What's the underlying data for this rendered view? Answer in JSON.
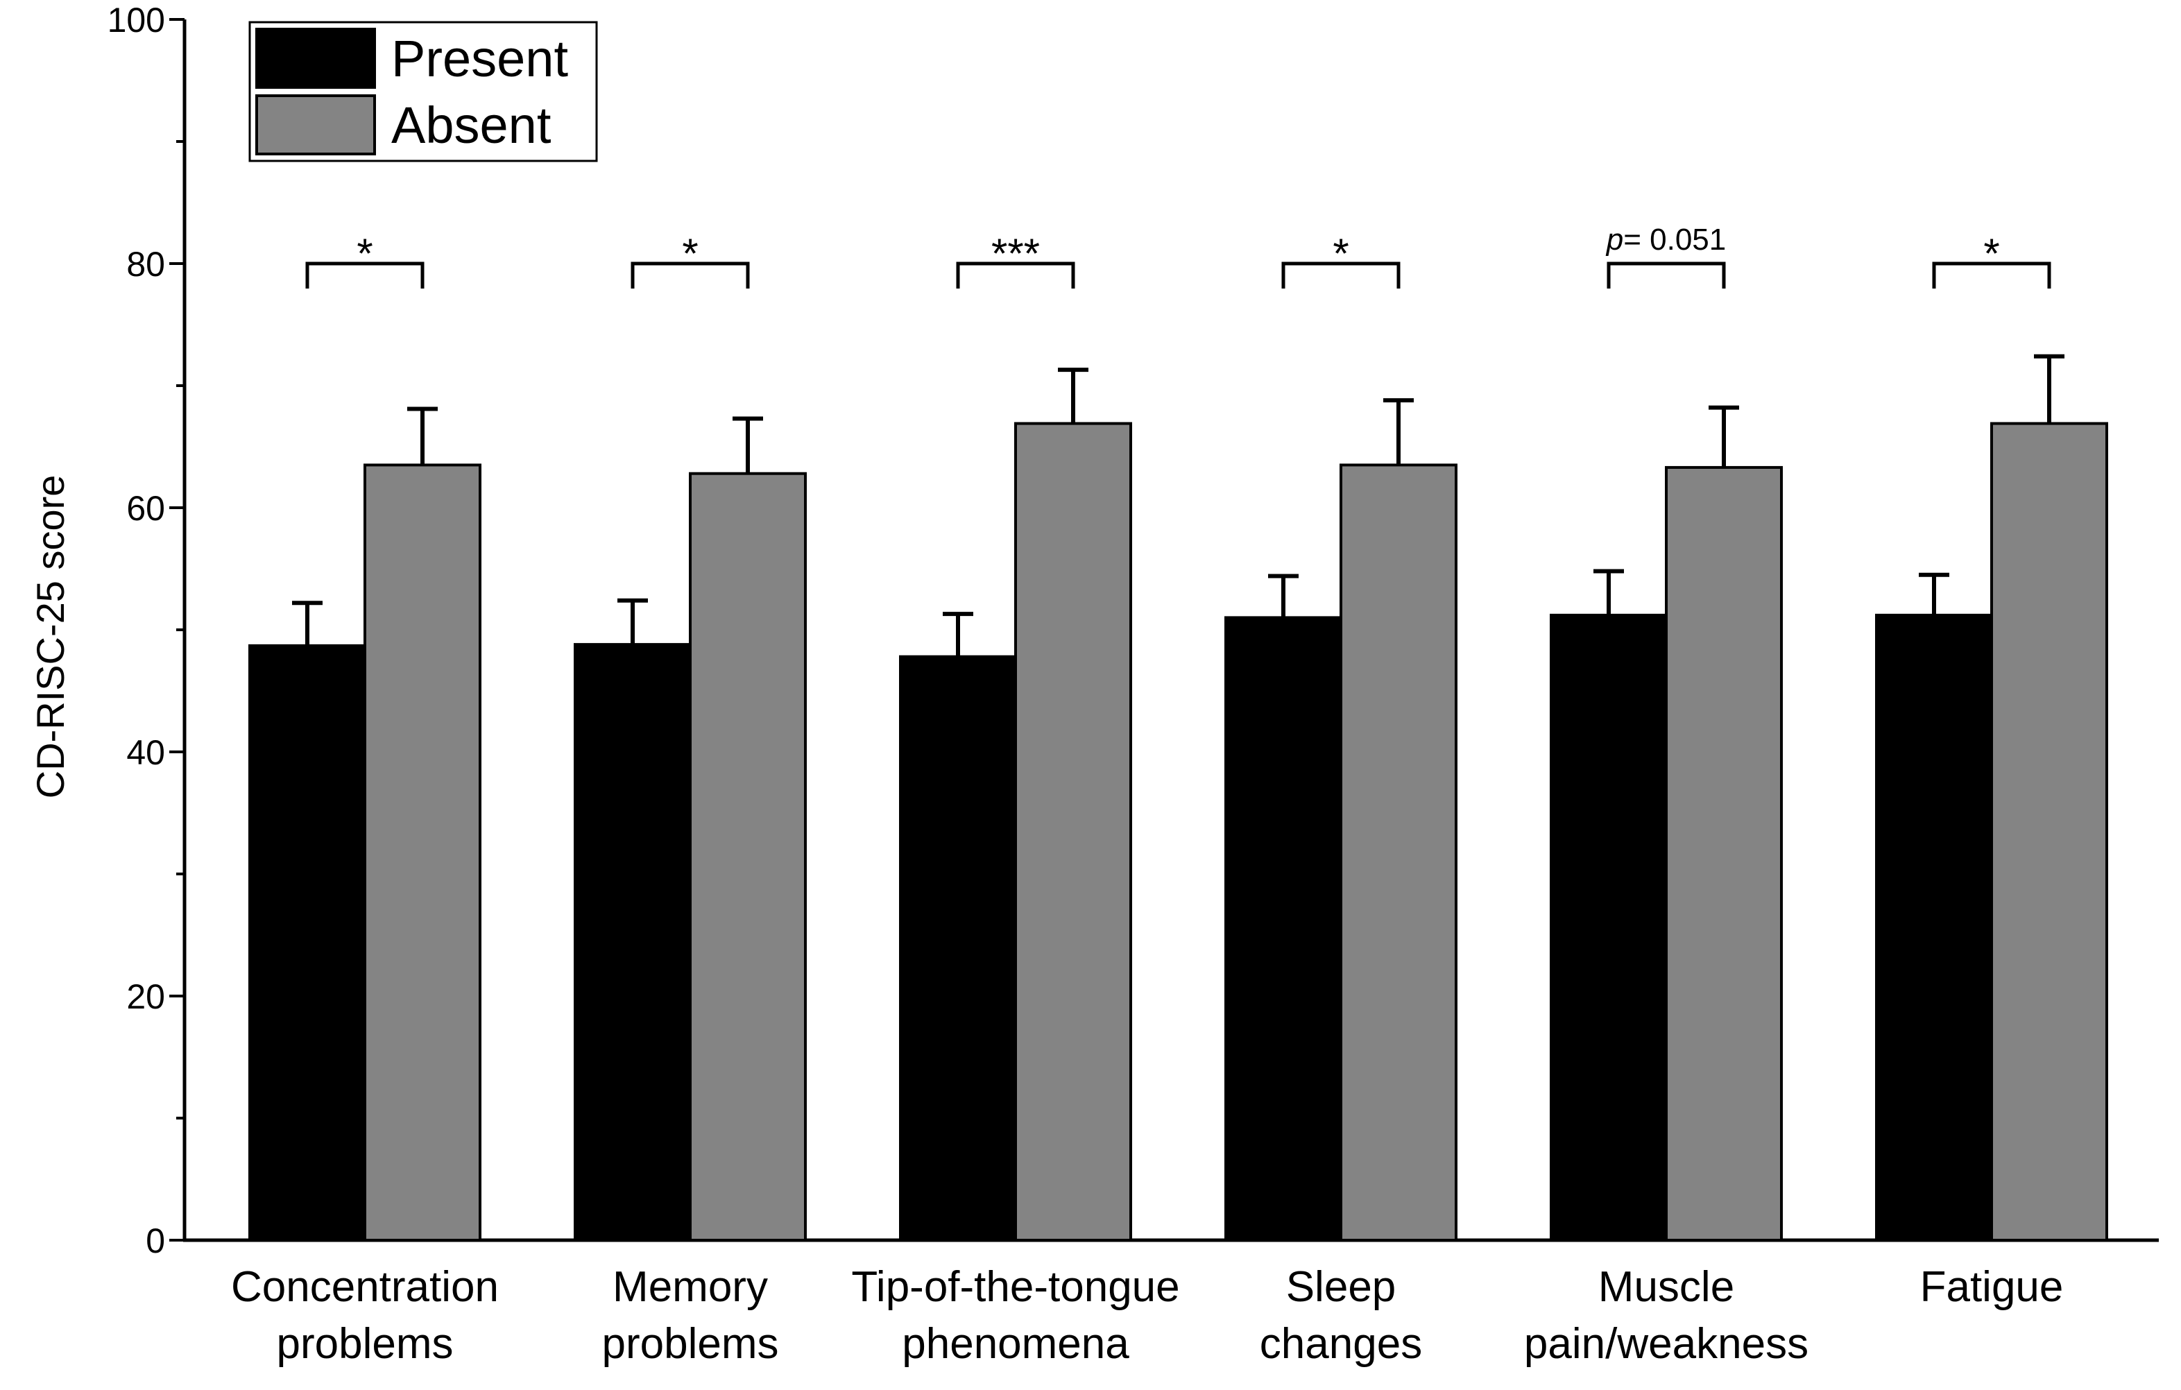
{
  "chart_data": {
    "type": "bar",
    "title": "",
    "xlabel": "",
    "ylabel": "CD-RISC-25 score",
    "ylim": [
      0,
      100
    ],
    "yticks": [
      0,
      20,
      40,
      60,
      80,
      100
    ],
    "categories": [
      [
        "Concentration",
        "problems"
      ],
      [
        "Memory",
        "problems"
      ],
      [
        "Tip-of-the-tongue",
        "phenomena"
      ],
      [
        "Sleep",
        "changes"
      ],
      [
        "Muscle",
        "pain/weakness"
      ],
      [
        "Fatigue"
      ]
    ],
    "series": [
      {
        "name": "Present",
        "color": "#000000",
        "values": [
          48.7,
          48.8,
          47.8,
          51.0,
          51.2,
          51.2
        ],
        "errors": [
          3.5,
          3.6,
          3.5,
          3.4,
          3.6,
          3.3
        ]
      },
      {
        "name": "Absent",
        "color": "#848484",
        "values": [
          63.5,
          62.8,
          66.9,
          63.5,
          63.3,
          66.9
        ],
        "errors": [
          4.6,
          4.5,
          4.4,
          5.3,
          4.9,
          5.5
        ]
      }
    ],
    "significance": [
      {
        "label": "*",
        "italic_prefix": "",
        "bracket_at": 80
      },
      {
        "label": "*",
        "italic_prefix": "",
        "bracket_at": 80
      },
      {
        "label": "***",
        "italic_prefix": "",
        "bracket_at": 80
      },
      {
        "label": "*",
        "italic_prefix": "",
        "bracket_at": 80
      },
      {
        "label": "= 0.051",
        "italic_prefix": "p",
        "bracket_at": 80
      },
      {
        "label": "*",
        "italic_prefix": "",
        "bracket_at": 80
      }
    ],
    "legend_position": "top-left",
    "grid": false
  }
}
